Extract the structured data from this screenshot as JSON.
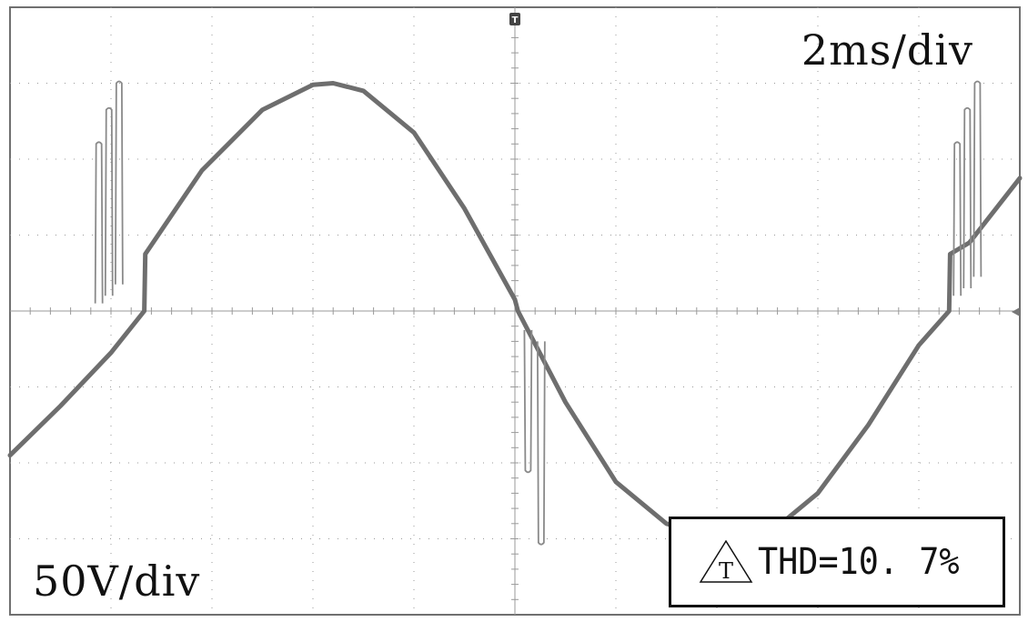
{
  "labels": {
    "time_scale": "2ms/div",
    "volt_scale": "50V/div",
    "thd": "THD=10. 7%",
    "thd_marker": "T"
  },
  "colors": {
    "trace": "#6e6e6e",
    "grid": "#9a9a9a",
    "frame": "#707070"
  },
  "chart_data": {
    "type": "line",
    "xlabel": "",
    "ylabel": "",
    "x_units": "div",
    "y_units": "div",
    "xlim": [
      0,
      10
    ],
    "ylim": [
      -4,
      4
    ],
    "grid": true,
    "series": [
      {
        "x": [
          0,
          0.5,
          1.0,
          1.33,
          1.34,
          1.9,
          2.5,
          3.0,
          3.2,
          3.5,
          4.0,
          4.5,
          5.0,
          5.03,
          5.5,
          6.0,
          6.5,
          7.0,
          7.2,
          7.5,
          8.0,
          8.5,
          9.0,
          9.3,
          9.31,
          9.5,
          10.0
        ],
        "y": [
          -1.9,
          -1.25,
          -0.55,
          0.0,
          0.75,
          1.85,
          2.65,
          2.98,
          3.0,
          2.9,
          2.35,
          1.35,
          0.15,
          0.0,
          -1.2,
          -2.25,
          -2.8,
          -3.0,
          -3.05,
          -2.95,
          -2.4,
          -1.5,
          -0.45,
          0.0,
          0.75,
          0.9,
          1.75
        ]
      }
    ],
    "transient_spikes": [
      {
        "x": 0.88,
        "from": 0.1,
        "to": 2.2
      },
      {
        "x": 0.98,
        "from": 0.2,
        "to": 2.65
      },
      {
        "x": 1.08,
        "from": 0.35,
        "to": 3.0
      },
      {
        "x": 5.13,
        "from": -0.25,
        "to": -2.1
      },
      {
        "x": 5.26,
        "from": -0.4,
        "to": -3.05
      },
      {
        "x": 9.38,
        "from": 0.2,
        "to": 2.2
      },
      {
        "x": 9.48,
        "from": 0.3,
        "to": 2.65
      },
      {
        "x": 9.58,
        "from": 0.45,
        "to": 3.0
      }
    ]
  }
}
